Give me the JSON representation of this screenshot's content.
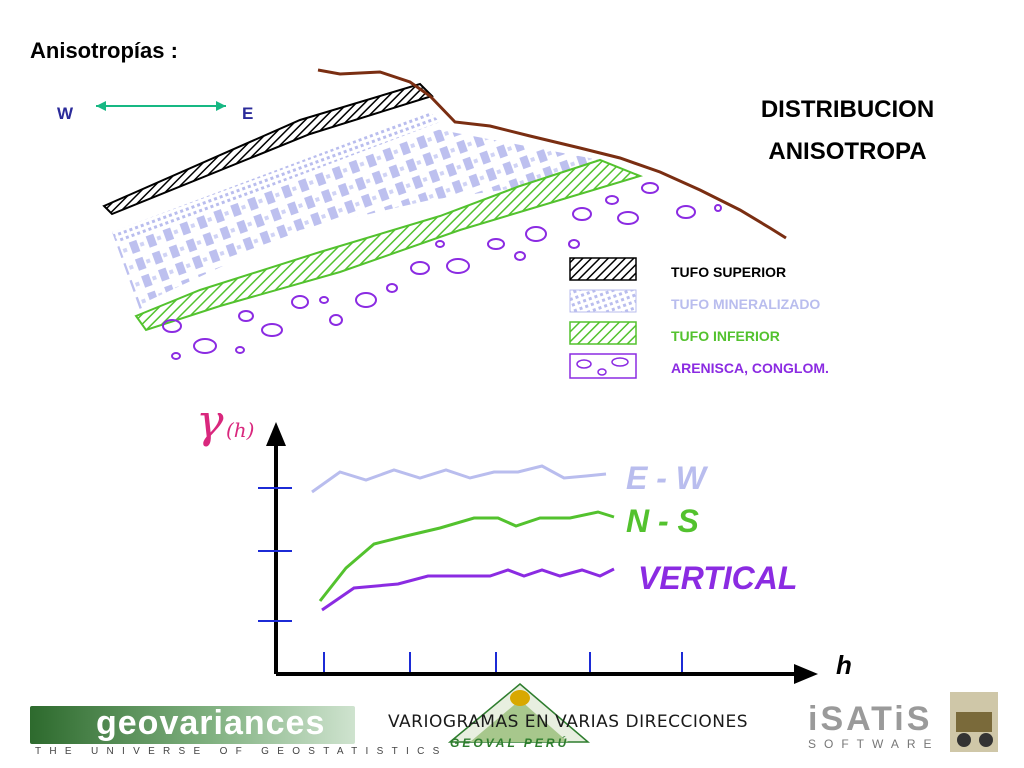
{
  "title": "Anisotropías :",
  "directions": {
    "w": "W",
    "e": "E"
  },
  "heading": {
    "line1": "DISTRIBUCION",
    "line2": "ANISOTROPA"
  },
  "legend": [
    {
      "label": "TUFO SUPERIOR",
      "color": "#000000"
    },
    {
      "label": "TUFO MINERALIZADO",
      "color": "#b9bdee"
    },
    {
      "label": "TUFO INFERIOR",
      "color": "#53c22e"
    },
    {
      "label": "ARENISCA, CONGLOM.",
      "color": "#8b2be2"
    }
  ],
  "colors": {
    "topography": "#7a2e12",
    "arrow": "#17b883",
    "axes": "#000000",
    "ticks": "#1c2bd6",
    "gamma": "#d9277d"
  },
  "variogram": {
    "gamma_symbol": "γ",
    "gamma_arg": "(h)",
    "x_label": "h",
    "series": [
      {
        "name": "E - W",
        "color": "#b9bdee"
      },
      {
        "name": "N - S",
        "color": "#53c22e"
      },
      {
        "name": "VERTICAL",
        "color": "#8b2be2"
      }
    ]
  },
  "footer": {
    "caption": "VARIOGRAMAS EN VARIAS DIRECCIONES",
    "geovariances_word": "geovariances",
    "geovariances_tagline": "THE UNIVERSE OF GEOSTATISTICS",
    "geoval_peru": "GEOVAL PERÚ",
    "isatis_word": "iSATiS",
    "isatis_sub": "SOFTWARE"
  }
}
